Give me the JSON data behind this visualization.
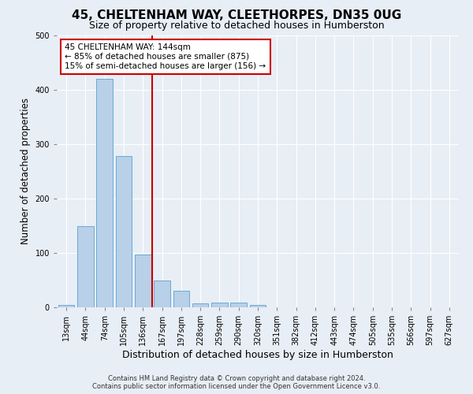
{
  "title": "45, CHELTENHAM WAY, CLEETHORPES, DN35 0UG",
  "subtitle": "Size of property relative to detached houses in Humberston",
  "xlabel": "Distribution of detached houses by size in Humberston",
  "ylabel": "Number of detached properties",
  "categories": [
    "13sqm",
    "44sqm",
    "74sqm",
    "105sqm",
    "136sqm",
    "167sqm",
    "197sqm",
    "228sqm",
    "259sqm",
    "290sqm",
    "320sqm",
    "351sqm",
    "382sqm",
    "412sqm",
    "443sqm",
    "474sqm",
    "505sqm",
    "535sqm",
    "566sqm",
    "597sqm",
    "627sqm"
  ],
  "values": [
    5,
    150,
    420,
    278,
    97,
    49,
    30,
    7,
    9,
    9,
    5,
    0,
    0,
    0,
    0,
    0,
    0,
    0,
    0,
    0,
    0
  ],
  "bar_color": "#b8d0e8",
  "bar_edge_color": "#6aaad4",
  "vline_color": "#cc0000",
  "annotation_line1": "45 CHELTENHAM WAY: 144sqm",
  "annotation_line2": "← 85% of detached houses are smaller (875)",
  "annotation_line3": "15% of semi-detached houses are larger (156) →",
  "annotation_box_color": "#ffffff",
  "annotation_box_edge": "#cc0000",
  "footer_line1": "Contains HM Land Registry data © Crown copyright and database right 2024.",
  "footer_line2": "Contains public sector information licensed under the Open Government Licence v3.0.",
  "ylim": [
    0,
    500
  ],
  "background_color": "#e8eef5",
  "plot_background": "#e8eef5",
  "grid_color": "#ffffff",
  "title_fontsize": 11,
  "subtitle_fontsize": 9,
  "xlabel_fontsize": 9,
  "ylabel_fontsize": 8.5,
  "tick_fontsize": 7,
  "footer_fontsize": 6
}
